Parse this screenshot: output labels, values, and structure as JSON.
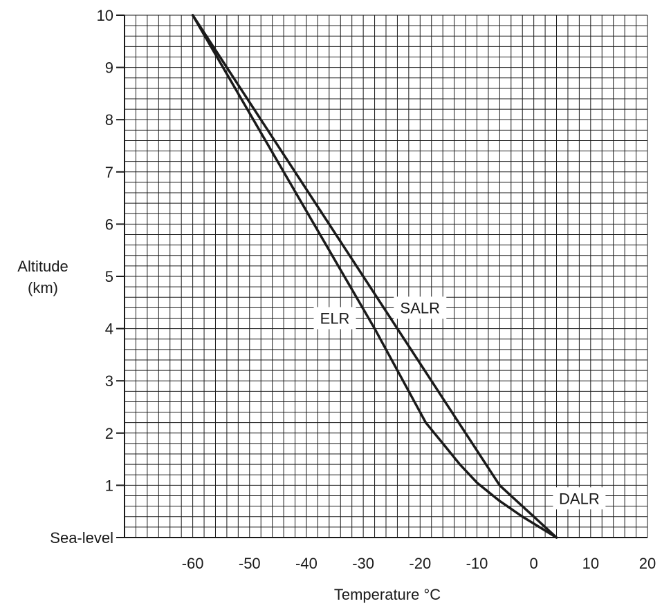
{
  "chart_data": {
    "type": "line",
    "title": "",
    "xlabel": "Temperature °C",
    "ylabel_lines": [
      "Altitude",
      "(km)"
    ],
    "xlim": [
      -72,
      20
    ],
    "ylim": [
      0,
      10
    ],
    "x_ticks": [
      -60,
      -50,
      -40,
      -30,
      -20,
      -10,
      0,
      10,
      20
    ],
    "x_tick_labels": [
      "-60",
      "-50",
      "-40",
      "-30",
      "-20",
      "-10",
      "0",
      "10",
      "20"
    ],
    "y_ticks": [
      0,
      1,
      2,
      3,
      4,
      5,
      6,
      7,
      8,
      9,
      10
    ],
    "y_tick_labels": [
      "Sea-level",
      "1",
      "2",
      "3",
      "4",
      "5",
      "6",
      "7",
      "8",
      "9",
      "10"
    ],
    "grid": true,
    "grid_minor_step_x": 2,
    "grid_minor_step_y": 0.2,
    "series": [
      {
        "name": "ELR",
        "points": [
          [
            4,
            0
          ],
          [
            -2,
            0.4
          ],
          [
            -6,
            0.7
          ],
          [
            -10,
            1.05
          ],
          [
            -13,
            1.4
          ],
          [
            -16,
            1.8
          ],
          [
            -19,
            2.2
          ],
          [
            -21,
            2.6
          ],
          [
            -28,
            4.0
          ],
          [
            -60,
            10
          ]
        ]
      },
      {
        "name": "SALR",
        "points": [
          [
            -60,
            10
          ],
          [
            -6,
            1.0
          ]
        ]
      },
      {
        "name": "DALR",
        "points": [
          [
            -6,
            1.0
          ],
          [
            4,
            0
          ]
        ]
      }
    ],
    "labels": [
      {
        "text": "ELR",
        "x": -35,
        "y": 4.2
      },
      {
        "text": "SALR",
        "x": -20,
        "y": 4.4
      },
      {
        "text": "DALR",
        "x": 8,
        "y": 0.75
      }
    ],
    "line_color": "#1a1a1a",
    "grid_color": "#1a1a1a"
  }
}
